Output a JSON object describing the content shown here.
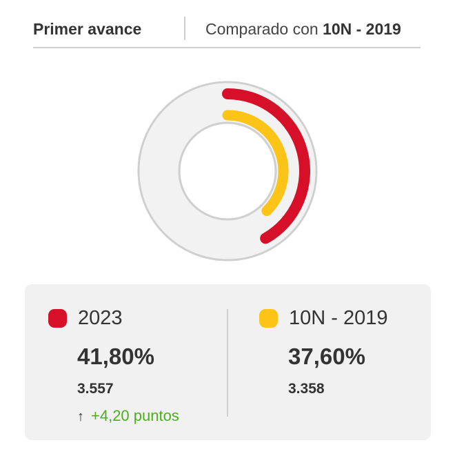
{
  "header": {
    "tab_primary": "Primer avance",
    "tab_compare_prefix": "Comparado con ",
    "tab_compare_bold": "10N - 2019"
  },
  "chart_data": {
    "type": "pie",
    "series": [
      {
        "name": "2023",
        "value": 41.8,
        "color": "#d7102a"
      },
      {
        "name": "10N - 2019",
        "value": 37.6,
        "color": "#fbc417"
      }
    ],
    "track_color": "#f2f2f2"
  },
  "card": {
    "left": {
      "label": "2023",
      "color": "#d7102a",
      "percent": "41,80%",
      "votes": "3.557",
      "delta_icon": "arrow-up-icon",
      "delta_text": "+4,20 puntos",
      "delta_color": "#4caf1a"
    },
    "right": {
      "label": "10N - 2019",
      "color": "#fbc417",
      "percent": "37,60%",
      "votes": "3.358"
    }
  }
}
